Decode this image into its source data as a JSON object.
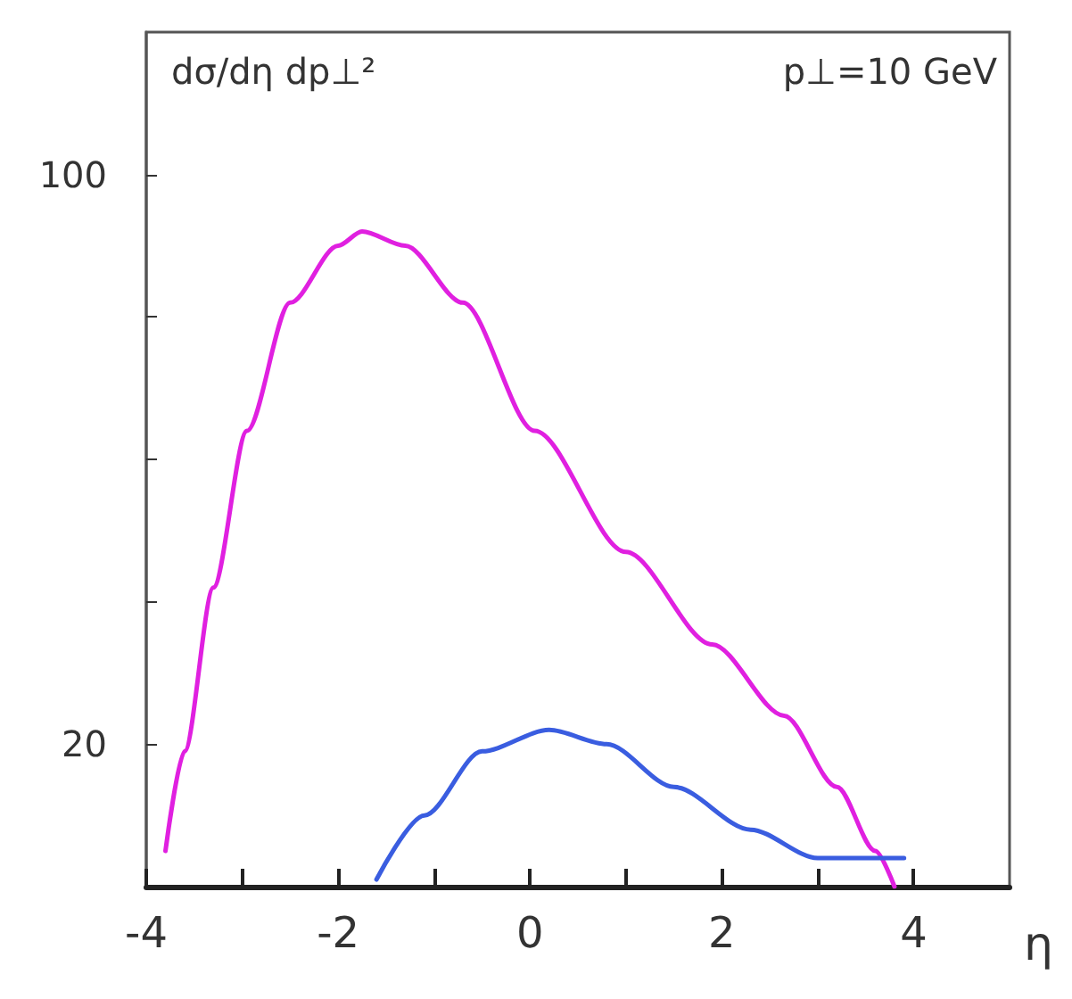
{
  "chart_data": {
    "type": "line",
    "ylabel": "dσ/dη dp⊥²",
    "xlabel": "η",
    "annotations": [
      "p⊥=10 GeV"
    ],
    "xlim": [
      -4,
      5
    ],
    "xticks": [
      -4,
      {
        "value": -3,
        "label": null
      },
      -2,
      {
        "value": -1,
        "label": null
      },
      0,
      {
        "value": 1,
        "label": null
      },
      2,
      {
        "value": 3,
        "label": null
      },
      4
    ],
    "ylim": [
      0,
      120
    ],
    "yticks": [
      20,
      {
        "value": 40,
        "label": null
      },
      {
        "value": 60,
        "label": null
      },
      {
        "value": 80,
        "label": null
      },
      100
    ],
    "grid": false,
    "marker": "none",
    "line_style": "solid",
    "series": [
      {
        "color": "#e020e0",
        "x": [
          -3.8,
          -3.6,
          -3.3,
          -2.95,
          -2.5,
          -2.0,
          -1.75,
          -1.3,
          -0.7,
          0.05,
          1.0,
          1.9,
          2.65,
          3.2,
          3.6,
          3.8
        ],
        "values": [
          5,
          19,
          42,
          64,
          82,
          90,
          92,
          90,
          82,
          64,
          47,
          34,
          24,
          14,
          5,
          0
        ]
      },
      {
        "color": "#3a5de0",
        "x": [
          -1.6,
          -1.1,
          -0.5,
          0.2,
          0.8,
          1.5,
          2.3,
          3.0,
          3.9
        ],
        "values": [
          1,
          10,
          19,
          22,
          20,
          14,
          8,
          4,
          4
        ]
      }
    ]
  }
}
